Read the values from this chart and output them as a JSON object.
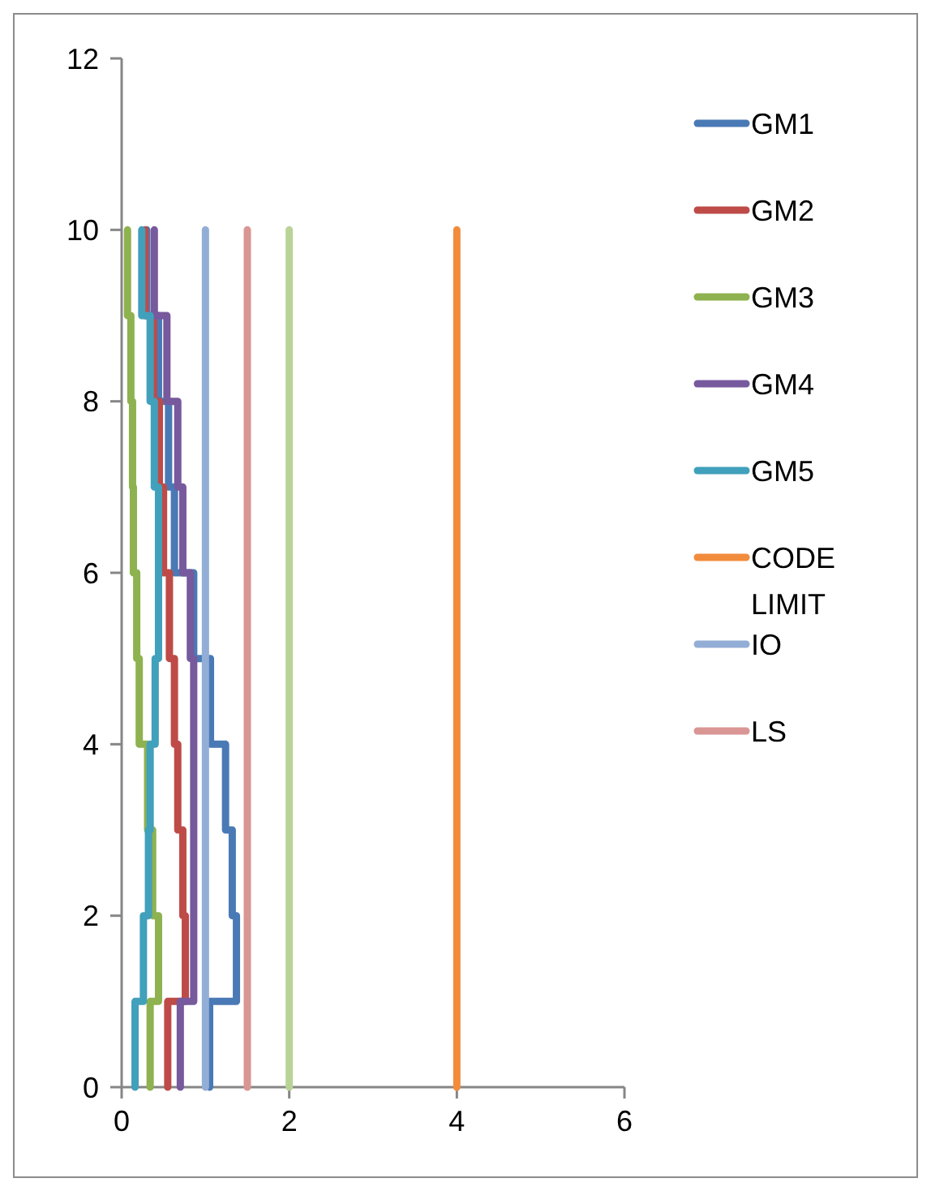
{
  "chart_data": {
    "type": "line",
    "xlim": [
      0,
      6
    ],
    "xticks": [
      0,
      2,
      4,
      6
    ],
    "ylim": [
      0,
      12
    ],
    "yticks": [
      0,
      2,
      4,
      6,
      8,
      10,
      12
    ],
    "grid": false,
    "legend": "right",
    "marker": "none",
    "line_style": "solid",
    "series": [
      {
        "name": "GM1",
        "color": "#4a7ab5",
        "x": [
          1.05,
          1.05,
          1.37,
          1.37,
          1.32,
          1.32,
          1.24,
          1.24,
          1.06,
          1.06,
          0.86,
          0.86,
          0.63,
          0.63,
          0.56,
          0.56,
          0.44,
          0.44,
          0.3,
          0.3
        ],
        "values": [
          0,
          1,
          1,
          2,
          2,
          3,
          3,
          4,
          4,
          5,
          5,
          6,
          6,
          7,
          7,
          8,
          8,
          9,
          9,
          10
        ]
      },
      {
        "name": "GM2",
        "color": "#be4b48",
        "x": [
          0.55,
          0.55,
          0.76,
          0.76,
          0.73,
          0.73,
          0.67,
          0.67,
          0.63,
          0.63,
          0.57,
          0.57,
          0.5,
          0.5,
          0.45,
          0.45,
          0.38,
          0.38,
          0.28,
          0.28
        ],
        "values": [
          0,
          1,
          1,
          2,
          2,
          3,
          3,
          4,
          4,
          5,
          5,
          6,
          6,
          7,
          7,
          8,
          8,
          9,
          9,
          10
        ]
      },
      {
        "name": "GM3",
        "color": "#8eb24f",
        "x": [
          0.34,
          0.34,
          0.44,
          0.44,
          0.37,
          0.37,
          0.31,
          0.31,
          0.21,
          0.21,
          0.18,
          0.18,
          0.14,
          0.14,
          0.13,
          0.13,
          0.11,
          0.11,
          0.07,
          0.07
        ],
        "values": [
          0,
          1,
          1,
          2,
          2,
          3,
          3,
          4,
          4,
          5,
          5,
          6,
          6,
          7,
          7,
          8,
          8,
          9,
          9,
          10
        ]
      },
      {
        "name": "GM4",
        "color": "#77599d",
        "x": [
          0.7,
          0.7,
          0.86,
          0.86,
          0.86,
          0.86,
          0.86,
          0.86,
          0.86,
          0.86,
          0.82,
          0.82,
          0.73,
          0.73,
          0.67,
          0.67,
          0.54,
          0.54,
          0.39,
          0.39
        ],
        "values": [
          0,
          1,
          1,
          2,
          2,
          3,
          3,
          4,
          4,
          5,
          5,
          6,
          6,
          7,
          7,
          8,
          8,
          9,
          9,
          10
        ]
      },
      {
        "name": "GM5",
        "color": "#41a0bb",
        "x": [
          0.16,
          0.16,
          0.26,
          0.26,
          0.32,
          0.32,
          0.34,
          0.34,
          0.4,
          0.4,
          0.44,
          0.44,
          0.44,
          0.44,
          0.39,
          0.39,
          0.34,
          0.34,
          0.24,
          0.24
        ],
        "values": [
          0,
          1,
          1,
          2,
          2,
          3,
          3,
          4,
          4,
          5,
          5,
          6,
          6,
          7,
          7,
          8,
          8,
          9,
          9,
          10
        ]
      },
      {
        "name": "CODE LIMIT",
        "color": "#f18c3c",
        "x": [
          4,
          4
        ],
        "values": [
          0,
          10
        ]
      },
      {
        "name": "IO",
        "color": "#93aed6",
        "x": [
          1,
          1
        ],
        "values": [
          0,
          10
        ]
      },
      {
        "name": "LS",
        "color": "#d99694",
        "x": [
          1.5,
          1.5
        ],
        "values": [
          0,
          10
        ]
      },
      {
        "color": "#b9d397",
        "x": [
          2,
          2
        ],
        "values": [
          0,
          10
        ]
      }
    ]
  }
}
